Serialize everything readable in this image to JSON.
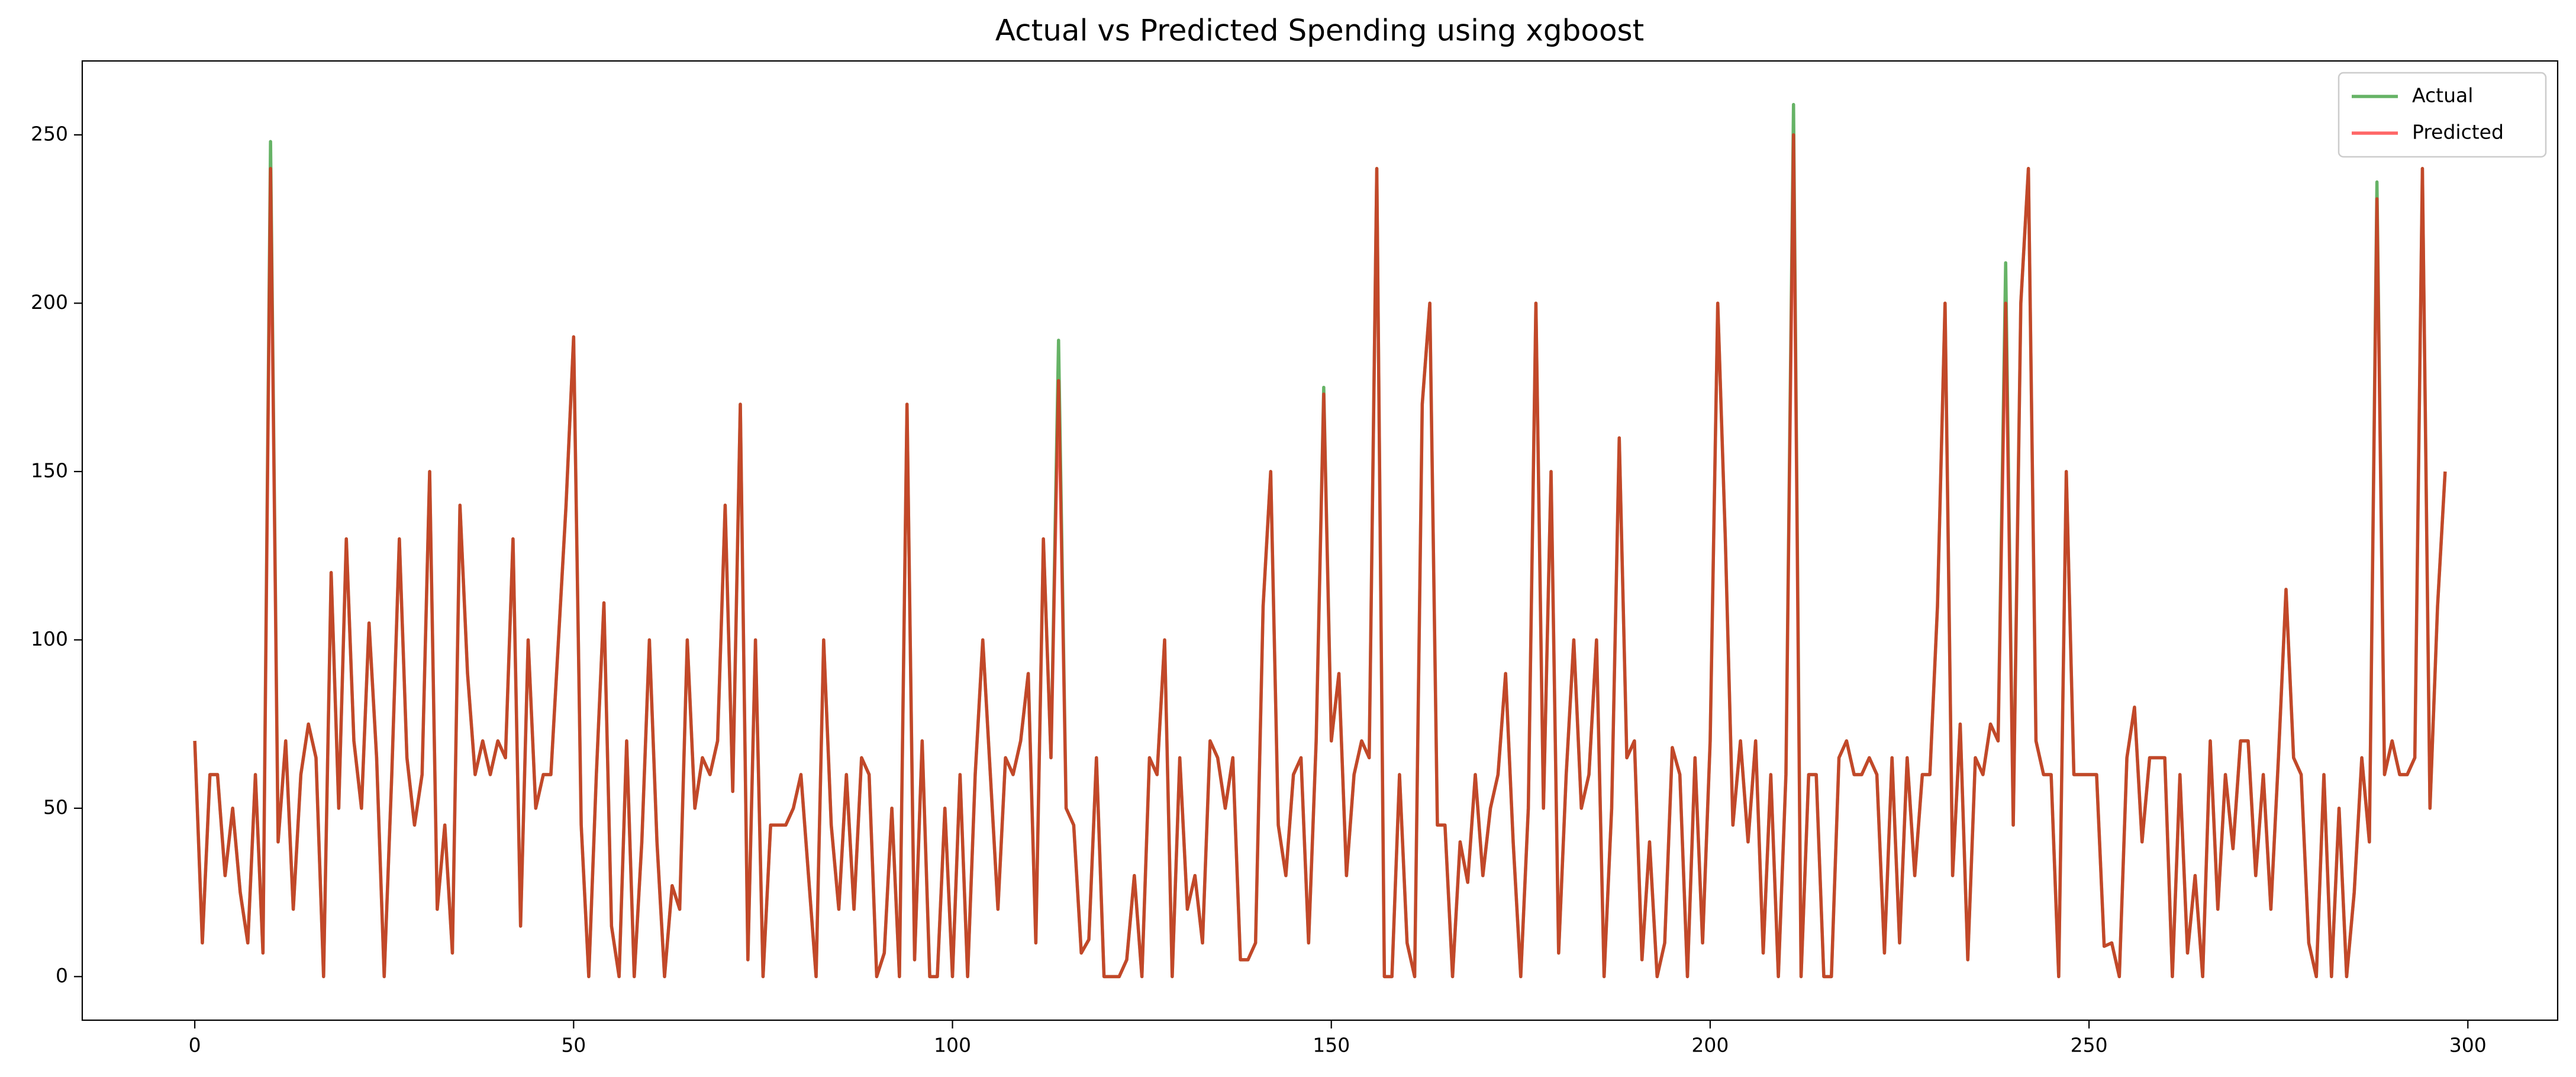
{
  "chart_data": {
    "type": "line",
    "title": "Actual vs Predicted Spending using xgboost",
    "x": [
      0,
      1,
      2,
      3,
      4,
      5,
      6,
      7,
      8,
      9,
      10,
      11,
      12,
      13,
      14,
      15,
      16,
      17,
      18,
      19,
      20,
      21,
      22,
      23,
      24,
      25,
      26,
      27,
      28,
      29,
      30,
      31,
      32,
      33,
      34,
      35,
      36,
      37,
      38,
      39,
      40,
      41,
      42,
      43,
      44,
      45,
      46,
      47,
      48,
      49,
      50,
      51,
      52,
      53,
      54,
      55,
      56,
      57,
      58,
      59,
      60,
      61,
      62,
      63,
      64,
      65,
      66,
      67,
      68,
      69,
      70,
      71,
      72,
      73,
      74,
      75,
      76,
      77,
      78,
      79,
      80,
      81,
      82,
      83,
      84,
      85,
      86,
      87,
      88,
      89,
      90,
      91,
      92,
      93,
      94,
      95,
      96,
      97,
      98,
      99,
      100,
      101,
      102,
      103,
      104,
      105,
      106,
      107,
      108,
      109,
      110,
      111,
      112,
      113,
      114,
      115,
      116,
      117,
      118,
      119,
      120,
      121,
      122,
      123,
      124,
      125,
      126,
      127,
      128,
      129,
      130,
      131,
      132,
      133,
      134,
      135,
      136,
      137,
      138,
      139,
      140,
      141,
      142,
      143,
      144,
      145,
      146,
      147,
      148,
      149,
      150,
      151,
      152,
      153,
      154,
      155,
      156,
      157,
      158,
      159,
      160,
      161,
      162,
      163,
      164,
      165,
      166,
      167,
      168,
      169,
      170,
      171,
      172,
      173,
      174,
      175,
      176,
      177,
      178,
      179,
      180,
      181,
      182,
      183,
      184,
      185,
      186,
      187,
      188,
      189,
      190,
      191,
      192,
      193,
      194,
      195,
      196,
      197,
      198,
      199,
      200,
      201,
      202,
      203,
      204,
      205,
      206,
      207,
      208,
      209,
      210,
      211,
      212,
      213,
      214,
      215,
      216,
      217,
      218,
      219,
      220,
      221,
      222,
      223,
      224,
      225,
      226,
      227,
      228,
      229,
      230,
      231,
      232,
      233,
      234,
      235,
      236,
      237,
      238,
      239,
      240,
      241,
      242,
      243,
      244,
      245,
      246,
      247,
      248,
      249,
      250,
      251,
      252,
      253,
      254,
      255,
      256,
      257,
      258,
      259,
      260,
      261,
      262,
      263,
      264,
      265,
      266,
      267,
      268,
      269,
      270,
      271,
      272,
      273,
      274,
      275,
      276,
      277,
      278,
      279,
      280,
      281,
      282,
      283,
      284,
      285,
      286,
      287,
      288,
      289,
      290,
      291,
      292,
      293,
      294,
      295,
      296,
      297
    ],
    "series": [
      {
        "name": "Actual",
        "color": "#008000",
        "opacity": 0.6,
        "values": [
          70,
          10,
          60,
          60,
          30,
          50,
          25,
          10,
          60,
          7,
          248,
          40,
          70,
          20,
          60,
          75,
          65,
          0,
          120,
          50,
          130,
          70,
          50,
          105,
          65,
          0,
          60,
          130,
          65,
          45,
          60,
          150,
          20,
          45,
          7,
          140,
          90,
          60,
          70,
          60,
          70,
          65,
          130,
          15,
          100,
          50,
          60,
          60,
          100,
          140,
          190,
          45,
          0,
          60,
          111,
          15,
          0,
          70,
          0,
          40,
          100,
          40,
          0,
          27,
          20,
          100,
          50,
          65,
          60,
          70,
          140,
          55,
          170,
          5,
          100,
          0,
          45,
          45,
          45,
          50,
          60,
          30,
          0,
          100,
          45,
          20,
          60,
          20,
          65,
          60,
          0,
          7,
          50,
          0,
          170,
          5,
          70,
          0,
          0,
          50,
          0,
          60,
          0,
          60,
          100,
          60,
          20,
          65,
          60,
          70,
          90,
          10,
          130,
          65,
          189,
          50,
          45,
          7,
          11,
          65,
          0,
          0,
          0,
          5,
          30,
          0,
          65,
          60,
          100,
          0,
          65,
          20,
          30,
          10,
          70,
          65,
          50,
          65,
          5,
          5,
          10,
          110,
          150,
          45,
          30,
          60,
          65,
          10,
          70,
          175,
          70,
          90,
          30,
          60,
          70,
          65,
          240,
          0,
          0,
          60,
          10,
          0,
          170,
          200,
          45,
          45,
          0,
          40,
          28,
          60,
          30,
          50,
          60,
          90,
          40,
          0,
          50,
          200,
          50,
          150,
          7,
          60,
          100,
          50,
          60,
          100,
          0,
          50,
          160,
          65,
          70,
          5,
          40,
          0,
          10,
          68,
          60,
          0,
          65,
          10,
          70,
          200,
          130,
          45,
          70,
          40,
          70,
          7,
          60,
          0,
          60,
          259,
          0,
          60,
          60,
          0,
          0,
          65,
          70,
          60,
          60,
          65,
          60,
          7,
          65,
          10,
          65,
          30,
          60,
          60,
          110,
          200,
          30,
          75,
          5,
          65,
          60,
          75,
          70,
          212,
          45,
          200,
          240,
          70,
          60,
          60,
          0,
          150,
          60,
          60,
          60,
          60,
          9,
          10,
          0,
          65,
          80,
          40,
          65,
          65,
          65,
          0,
          60,
          7,
          30,
          0,
          70,
          20,
          60,
          38,
          70,
          70,
          30,
          60,
          20,
          65,
          115,
          65,
          60,
          10,
          0,
          60,
          0,
          50,
          0,
          25,
          65,
          40,
          236,
          60,
          70,
          60,
          60,
          65,
          240,
          50,
          110,
          150
        ]
      },
      {
        "name": "Predicted",
        "color": "#ff0000",
        "opacity": 0.6,
        "values": [
          70,
          10,
          60,
          60,
          30,
          50,
          25,
          10,
          60,
          7,
          240,
          40,
          70,
          20,
          60,
          75,
          65,
          0,
          120,
          50,
          130,
          70,
          50,
          105,
          65,
          0,
          60,
          130,
          65,
          45,
          60,
          150,
          20,
          45,
          7,
          140,
          90,
          60,
          70,
          60,
          70,
          65,
          130,
          15,
          100,
          50,
          60,
          60,
          100,
          140,
          190,
          45,
          0,
          60,
          111,
          15,
          0,
          70,
          0,
          40,
          100,
          40,
          0,
          27,
          20,
          100,
          50,
          65,
          60,
          70,
          140,
          55,
          170,
          5,
          100,
          0,
          45,
          45,
          45,
          50,
          60,
          30,
          0,
          100,
          45,
          20,
          60,
          20,
          65,
          60,
          0,
          7,
          50,
          0,
          170,
          5,
          70,
          0,
          0,
          50,
          0,
          60,
          0,
          60,
          100,
          60,
          20,
          65,
          60,
          70,
          90,
          10,
          130,
          65,
          177,
          50,
          45,
          7,
          11,
          65,
          0,
          0,
          0,
          5,
          30,
          0,
          65,
          60,
          100,
          0,
          65,
          20,
          30,
          10,
          70,
          65,
          50,
          65,
          5,
          5,
          10,
          110,
          150,
          45,
          30,
          60,
          65,
          10,
          70,
          173,
          70,
          90,
          30,
          60,
          70,
          65,
          240,
          0,
          0,
          60,
          10,
          0,
          170,
          200,
          45,
          45,
          0,
          40,
          28,
          60,
          30,
          50,
          60,
          90,
          40,
          0,
          50,
          200,
          50,
          150,
          7,
          60,
          100,
          50,
          60,
          100,
          0,
          50,
          160,
          65,
          70,
          5,
          40,
          0,
          10,
          68,
          60,
          0,
          65,
          10,
          70,
          200,
          130,
          45,
          70,
          40,
          70,
          7,
          60,
          0,
          60,
          250,
          0,
          60,
          60,
          0,
          0,
          65,
          70,
          60,
          60,
          65,
          60,
          7,
          65,
          10,
          65,
          30,
          60,
          60,
          110,
          200,
          30,
          75,
          5,
          65,
          60,
          75,
          70,
          200,
          45,
          200,
          240,
          70,
          60,
          60,
          0,
          150,
          60,
          60,
          60,
          60,
          9,
          10,
          0,
          65,
          80,
          40,
          65,
          65,
          65,
          0,
          60,
          7,
          30,
          0,
          70,
          20,
          60,
          38,
          70,
          70,
          30,
          60,
          20,
          65,
          115,
          65,
          60,
          10,
          0,
          60,
          0,
          50,
          0,
          25,
          65,
          40,
          231,
          60,
          70,
          60,
          60,
          65,
          240,
          50,
          110,
          150
        ]
      }
    ],
    "xlim": [
      -14.85,
      311.85
    ],
    "xticks": [
      0,
      50,
      100,
      150,
      200,
      250,
      300
    ],
    "ylim": [
      -12.95,
      271.95
    ],
    "yticks": [
      0,
      50,
      100,
      150,
      200,
      250
    ],
    "legend": "upper right"
  }
}
